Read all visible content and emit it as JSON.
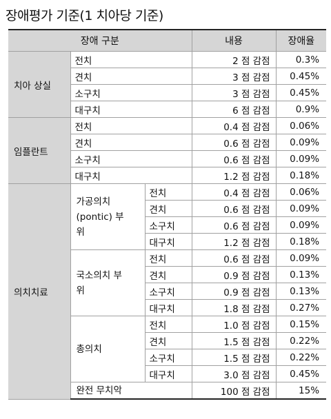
{
  "title": "장애평가 기준(1 치아당 기준)",
  "header": {
    "category": "장애 구분",
    "content": "내용",
    "rate": "장애율"
  },
  "groups": {
    "tooth_loss": {
      "name": "치아 상실",
      "rows": [
        {
          "tooth": "전치",
          "content": "2 점 감점",
          "rate": "0.3%"
        },
        {
          "tooth": "견치",
          "content": "3 점 감점",
          "rate": "0.45%"
        },
        {
          "tooth": "소구치",
          "content": "3 점 감점",
          "rate": "0.45%"
        },
        {
          "tooth": "대구치",
          "content": "6 점 감점",
          "rate": "0.9%"
        }
      ]
    },
    "implant": {
      "name": "임플란트",
      "rows": [
        {
          "tooth": "전치",
          "content": "0.4 점 감점",
          "rate": "0.06%"
        },
        {
          "tooth": "견치",
          "content": "0.6 점 감점",
          "rate": "0.09%"
        },
        {
          "tooth": "소구치",
          "content": "0.6 점 감점",
          "rate": "0.09%"
        },
        {
          "tooth": "대구치",
          "content": "1.2 점 감점",
          "rate": "0.18%"
        }
      ]
    },
    "prosthetics": {
      "name": "의치치료",
      "pontic": {
        "name": "가공의치 (pontic) 부위",
        "rows": [
          {
            "tooth": "전치",
            "content": "0.4 점 감점",
            "rate": "0.06%"
          },
          {
            "tooth": "견치",
            "content": "0.6 점 감점",
            "rate": "0.09%"
          },
          {
            "tooth": "소구치",
            "content": "0.6 점 감점",
            "rate": "0.09%"
          },
          {
            "tooth": "대구치",
            "content": "1.2 점 감점",
            "rate": "0.18%"
          }
        ]
      },
      "partial": {
        "name": "국소의치 부위",
        "rows": [
          {
            "tooth": "전치",
            "content": "0.6 점 감점",
            "rate": "0.09%"
          },
          {
            "tooth": "견치",
            "content": "0.9 점 감점",
            "rate": "0.13%"
          },
          {
            "tooth": "소구치",
            "content": "0.9 점 감점",
            "rate": "0.13%"
          },
          {
            "tooth": "대구치",
            "content": "1.8 점 감점",
            "rate": "0.27%"
          }
        ]
      },
      "complete": {
        "name": "총의치",
        "rows": [
          {
            "tooth": "전치",
            "content": "1.0 점 감점",
            "rate": "0.15%"
          },
          {
            "tooth": "견치",
            "content": "1.5 점 감점",
            "rate": "0.22%"
          },
          {
            "tooth": "소구치",
            "content": "1.5 점 감점",
            "rate": "0.22%"
          },
          {
            "tooth": "대구치",
            "content": "3.0 점 감점",
            "rate": "0.45%"
          }
        ]
      },
      "edentulous": {
        "name": "완전 무치악",
        "content": "100 점 감점",
        "rate": "15%"
      }
    }
  }
}
